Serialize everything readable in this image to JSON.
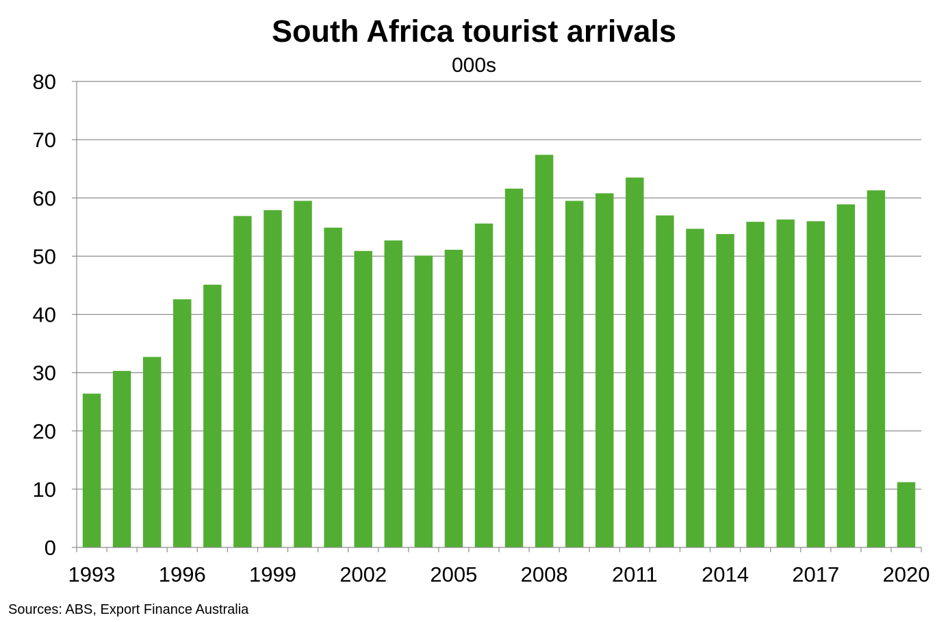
{
  "chart_data": {
    "type": "bar",
    "title": "South Africa tourist arrivals",
    "subtitle": "000s",
    "categories": [
      "1993",
      "1994",
      "1995",
      "1996",
      "1997",
      "1998",
      "1999",
      "2000",
      "2001",
      "2002",
      "2003",
      "2004",
      "2005",
      "2006",
      "2007",
      "2008",
      "2009",
      "2010",
      "2011",
      "2012",
      "2013",
      "2014",
      "2015",
      "2016",
      "2017",
      "2018",
      "2019",
      "2020"
    ],
    "x_tick_labels": [
      "1993",
      "1996",
      "1999",
      "2002",
      "2005",
      "2008",
      "2011",
      "2014",
      "2017",
      "2020"
    ],
    "values": [
      26.4,
      30.3,
      32.7,
      42.6,
      45.1,
      56.9,
      57.9,
      59.5,
      54.9,
      50.9,
      52.7,
      50.1,
      51.1,
      55.6,
      61.6,
      67.4,
      59.5,
      60.8,
      63.5,
      57.0,
      54.7,
      53.8,
      55.9,
      56.3,
      56.0,
      58.9,
      61.3,
      11.2
    ],
    "y_ticks": [
      0,
      10,
      20,
      30,
      40,
      50,
      60,
      70,
      80
    ],
    "ylim": [
      0,
      80
    ],
    "xlabel": "",
    "ylabel": "",
    "grid": true,
    "colors": {
      "bar": "#52ae32",
      "grid": "#8c8c8c",
      "axis": "#8c8c8c"
    }
  },
  "source": "Sources: ABS, Export Finance Australia"
}
